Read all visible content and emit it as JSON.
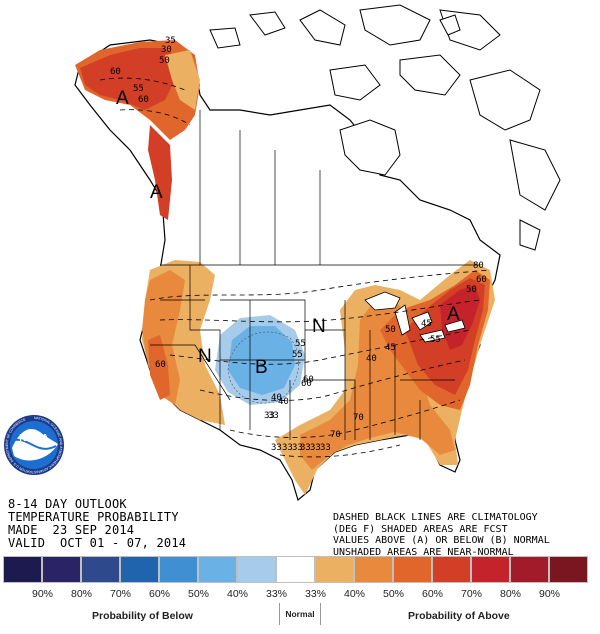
{
  "title": {
    "line1": "8-14 DAY OUTLOOK",
    "line2": "TEMPERATURE PROBABILITY",
    "line3": "MADE  23 SEP 2014",
    "line4": "VALID  OCT 01 - 07, 2014"
  },
  "note": {
    "line1": "DASHED BLACK LINES ARE CLIMATOLOGY",
    "line2": "(DEG F) SHADED AREAS ARE FCST",
    "line3": "VALUES ABOVE (A) OR BELOW (B) NORMAL",
    "line4": "UNSHADED AREAS ARE NEAR-NORMAL"
  },
  "logo": {
    "name": "noaa-logo",
    "text": "NOAA",
    "ring_text": "NATIONAL OCEANIC AND ATMOSPHERIC ADMINISTRATION U.S. DEPARTMENT OF COMMERCE"
  },
  "map": {
    "region_labels": [
      {
        "key": "A",
        "area": "Alaska"
      },
      {
        "key": "A",
        "area": "Pacific Northwest coast"
      },
      {
        "key": "N",
        "area": "Great Basin"
      },
      {
        "key": "B",
        "area": "Central Rockies"
      },
      {
        "key": "N",
        "area": "Northern Plains"
      },
      {
        "key": "A",
        "area": "Northeast"
      }
    ],
    "climatology_labels": [
      "30",
      "35",
      "50",
      "60",
      "55",
      "60",
      "40",
      "45",
      "50",
      "55",
      "60",
      "70",
      "40",
      "45",
      "50",
      "55",
      "60",
      "60",
      "70",
      "80",
      "33",
      "55",
      "60",
      "40",
      "33",
      "33",
      "33",
      "33",
      "33",
      "33",
      "33"
    ]
  },
  "legend": {
    "swatch_colors": [
      "#1c1a4e",
      "#2a2466",
      "#2f4a8c",
      "#1f64ac",
      "#3f8fd2",
      "#6ab1e6",
      "#a7cbea",
      "#ffffff",
      "#ebb062",
      "#e8893d",
      "#e0662b",
      "#d23f26",
      "#c4232b",
      "#a11b2b",
      "#7a1620"
    ],
    "percent_labels": [
      "90%",
      "80%",
      "70%",
      "60%",
      "50%",
      "40%",
      "33%",
      "33%",
      "40%",
      "50%",
      "60%",
      "70%",
      "80%",
      "90%"
    ],
    "below_label": "Probability of Below",
    "normal_label": "Normal",
    "above_label": "Probability of Above"
  }
}
